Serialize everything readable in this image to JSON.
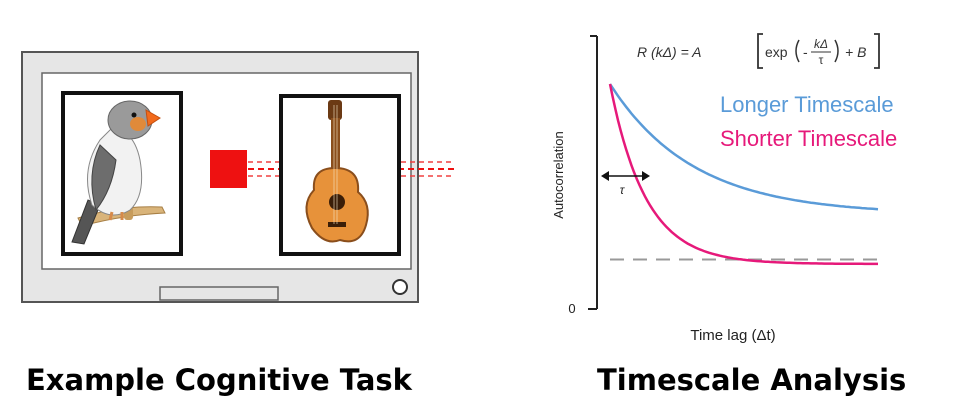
{
  "left_panel": {
    "caption": "Example Cognitive Task",
    "stimulus_left": "bird-image",
    "stimulus_right": "guitar-image",
    "fixation_color": "#ee1111"
  },
  "right_panel": {
    "caption": "Timescale Analysis",
    "formula": {
      "prefix": "R (kΔ) = A",
      "exp": "exp",
      "minus": "-",
      "numerator": "kΔ",
      "denominator": "τ",
      "suffix": "+ B"
    },
    "legend": {
      "longer": "Longer Timescale",
      "shorter": "Shorter Timescale"
    },
    "tau_label": "τ"
  },
  "chart_data": {
    "type": "line",
    "xlabel": "Time lag (Δt)",
    "ylabel": "Autocorrelation",
    "y_tick_labels": [
      "0"
    ],
    "series": [
      {
        "name": "Longer Timescale",
        "color": "#5a9bd8",
        "shape": "exponential-decay",
        "start": 1.0,
        "asymptote": 0.42
      },
      {
        "name": "Shorter Timescale",
        "color": "#e6197a",
        "shape": "exponential-decay",
        "start": 1.0,
        "asymptote": 0.2
      }
    ],
    "baseline": {
      "style": "dashed",
      "color": "#999999",
      "value": 0.22
    }
  }
}
